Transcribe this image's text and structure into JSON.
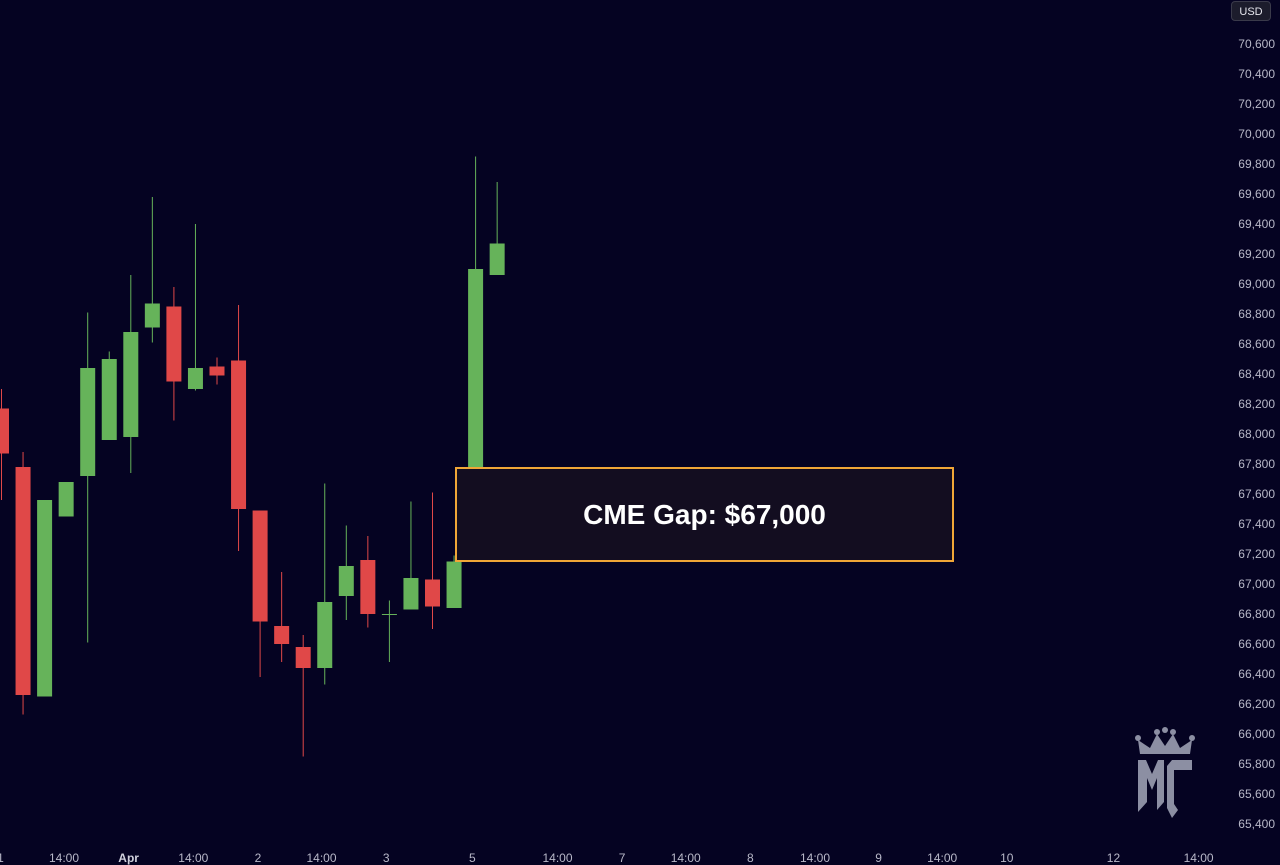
{
  "currency": "USD",
  "annotation": {
    "label": "CME Gap: $67,000"
  },
  "colors": {
    "up": "#66b35a",
    "down": "#e04848",
    "background": "#050322",
    "annotation_border": "#f0a637"
  },
  "logo": {
    "text": "MC",
    "icon": "crown-icon"
  },
  "chart_data": {
    "type": "candlestick",
    "yaxis": {
      "ticks": [
        "70,600",
        "70,400",
        "70,200",
        "70,000",
        "69,800",
        "69,600",
        "69,400",
        "69,200",
        "69,000",
        "68,800",
        "68,600",
        "68,400",
        "68,200",
        "68,000",
        "67,800",
        "67,600",
        "67,400",
        "67,200",
        "67,000",
        "66,800",
        "66,600",
        "66,400",
        "66,200",
        "66,000",
        "65,800",
        "65,600",
        "65,400"
      ],
      "range": [
        65300,
        70700
      ],
      "position": "right"
    },
    "xaxis": {
      "ticks": [
        {
          "label": "1",
          "slot": -0.05
        },
        {
          "label": "14:00",
          "slot": 2.9
        },
        {
          "label": "Apr",
          "slot": 5.9,
          "bold": true
        },
        {
          "label": "14:00",
          "slot": 8.9
        },
        {
          "label": "2",
          "slot": 11.9
        },
        {
          "label": "14:00",
          "slot": 14.85
        },
        {
          "label": "3",
          "slot": 17.85
        },
        {
          "label": "5",
          "slot": 21.85
        },
        {
          "label": "14:00",
          "slot": 25.8
        },
        {
          "label": "7",
          "slot": 28.8
        },
        {
          "label": "14:00",
          "slot": 31.75
        },
        {
          "label": "8",
          "slot": 34.75
        },
        {
          "label": "14:00",
          "slot": 37.75
        },
        {
          "label": "9",
          "slot": 40.7
        },
        {
          "label": "14:00",
          "slot": 43.65
        },
        {
          "label": "10",
          "slot": 46.65
        },
        {
          "label": "12",
          "slot": 51.6
        },
        {
          "label": "14:00",
          "slot": 55.55
        }
      ]
    },
    "candles": [
      {
        "o": 68170,
        "h": 68300,
        "l": 67560,
        "c": 67870
      },
      {
        "o": 67780,
        "h": 67880,
        "l": 66130,
        "c": 66260
      },
      {
        "o": 66250,
        "h": 67550,
        "l": 66250,
        "c": 67560
      },
      {
        "o": 67450,
        "h": 67680,
        "l": 67450,
        "c": 67680
      },
      {
        "o": 67720,
        "h": 68810,
        "l": 66610,
        "c": 68440
      },
      {
        "o": 67960,
        "h": 68550,
        "l": 67960,
        "c": 68500
      },
      {
        "o": 67980,
        "h": 69060,
        "l": 67740,
        "c": 68680
      },
      {
        "o": 68710,
        "h": 69580,
        "l": 68610,
        "c": 68870
      },
      {
        "o": 68850,
        "h": 68980,
        "l": 68090,
        "c": 68350
      },
      {
        "o": 68300,
        "h": 69400,
        "l": 68290,
        "c": 68440
      },
      {
        "o": 68450,
        "h": 68510,
        "l": 68330,
        "c": 68390
      },
      {
        "o": 68490,
        "h": 68860,
        "l": 67220,
        "c": 67500
      },
      {
        "o": 67490,
        "h": 67490,
        "l": 66380,
        "c": 66750
      },
      {
        "o": 66720,
        "h": 67080,
        "l": 66480,
        "c": 66600
      },
      {
        "o": 66580,
        "h": 66660,
        "l": 65850,
        "c": 66440
      },
      {
        "o": 66440,
        "h": 67670,
        "l": 66330,
        "c": 66880
      },
      {
        "o": 66920,
        "h": 67390,
        "l": 66760,
        "c": 67120
      },
      {
        "o": 67160,
        "h": 67320,
        "l": 66710,
        "c": 66800
      },
      {
        "o": 66800,
        "h": 66890,
        "l": 66480,
        "c": 66800
      },
      {
        "o": 66830,
        "h": 67550,
        "l": 66830,
        "c": 67040
      },
      {
        "o": 67030,
        "h": 67610,
        "l": 66700,
        "c": 66850
      },
      {
        "o": 66840,
        "h": 67190,
        "l": 66840,
        "c": 67150
      },
      {
        "o": 67750,
        "h": 69850,
        "l": 67570,
        "c": 69100
      },
      {
        "o": 69060,
        "h": 69680,
        "l": 69060,
        "c": 69270
      }
    ]
  }
}
